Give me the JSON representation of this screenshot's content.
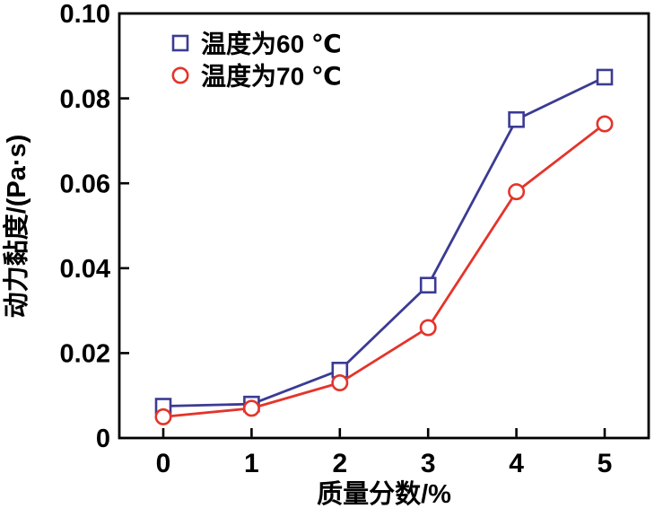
{
  "chart_data": {
    "type": "line",
    "title": "",
    "xlabel": "质量分数/%",
    "ylabel": "动力黏度/(Pa·s)",
    "x": [
      0,
      1,
      2,
      3,
      4,
      5
    ],
    "x_tick_labels": [
      "0",
      "1",
      "2",
      "3",
      "4",
      "5"
    ],
    "xlim": [
      0,
      5
    ],
    "y_ticks": [
      0,
      0.02,
      0.04,
      0.06,
      0.08,
      0.1
    ],
    "y_tick_labels": [
      "0",
      "0.02",
      "0.04",
      "0.06",
      "0.08",
      "0.10"
    ],
    "ylim": [
      0,
      0.1
    ],
    "grid": false,
    "legend_position": "top-left-inside",
    "series": [
      {
        "name": "温度为60 ℃",
        "marker": "square",
        "color": "#3B3B94",
        "values": [
          0.0075,
          0.008,
          0.016,
          0.036,
          0.075,
          0.085
        ]
      },
      {
        "name": "温度为70 ℃",
        "marker": "circle",
        "color": "#E4342A",
        "values": [
          0.005,
          0.007,
          0.013,
          0.026,
          0.058,
          0.074
        ]
      }
    ]
  },
  "colors": {
    "axis": "#000000",
    "background": "#ffffff",
    "series_60": "#3B3B94",
    "series_70": "#E4342A"
  }
}
